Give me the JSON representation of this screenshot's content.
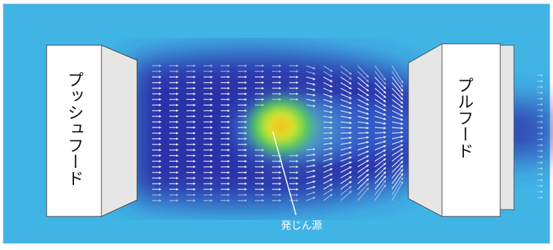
{
  "labels": {
    "push_hood": "プッシュフード",
    "pull_hood": "プルフード",
    "dust_source": "発じん源"
  },
  "colors": {
    "background_field": "#41b4e6",
    "flow_core": "#2a31a8",
    "plume_green": "#3ccf4a",
    "plume_yellow": "#f3ef2a",
    "plume_orange": "#f08a18",
    "vector_arrows": "#e8ecff",
    "hood_face": "#ffffff",
    "hood_side": "#e6e6e6",
    "frame_border": "#d0d0d0"
  }
}
